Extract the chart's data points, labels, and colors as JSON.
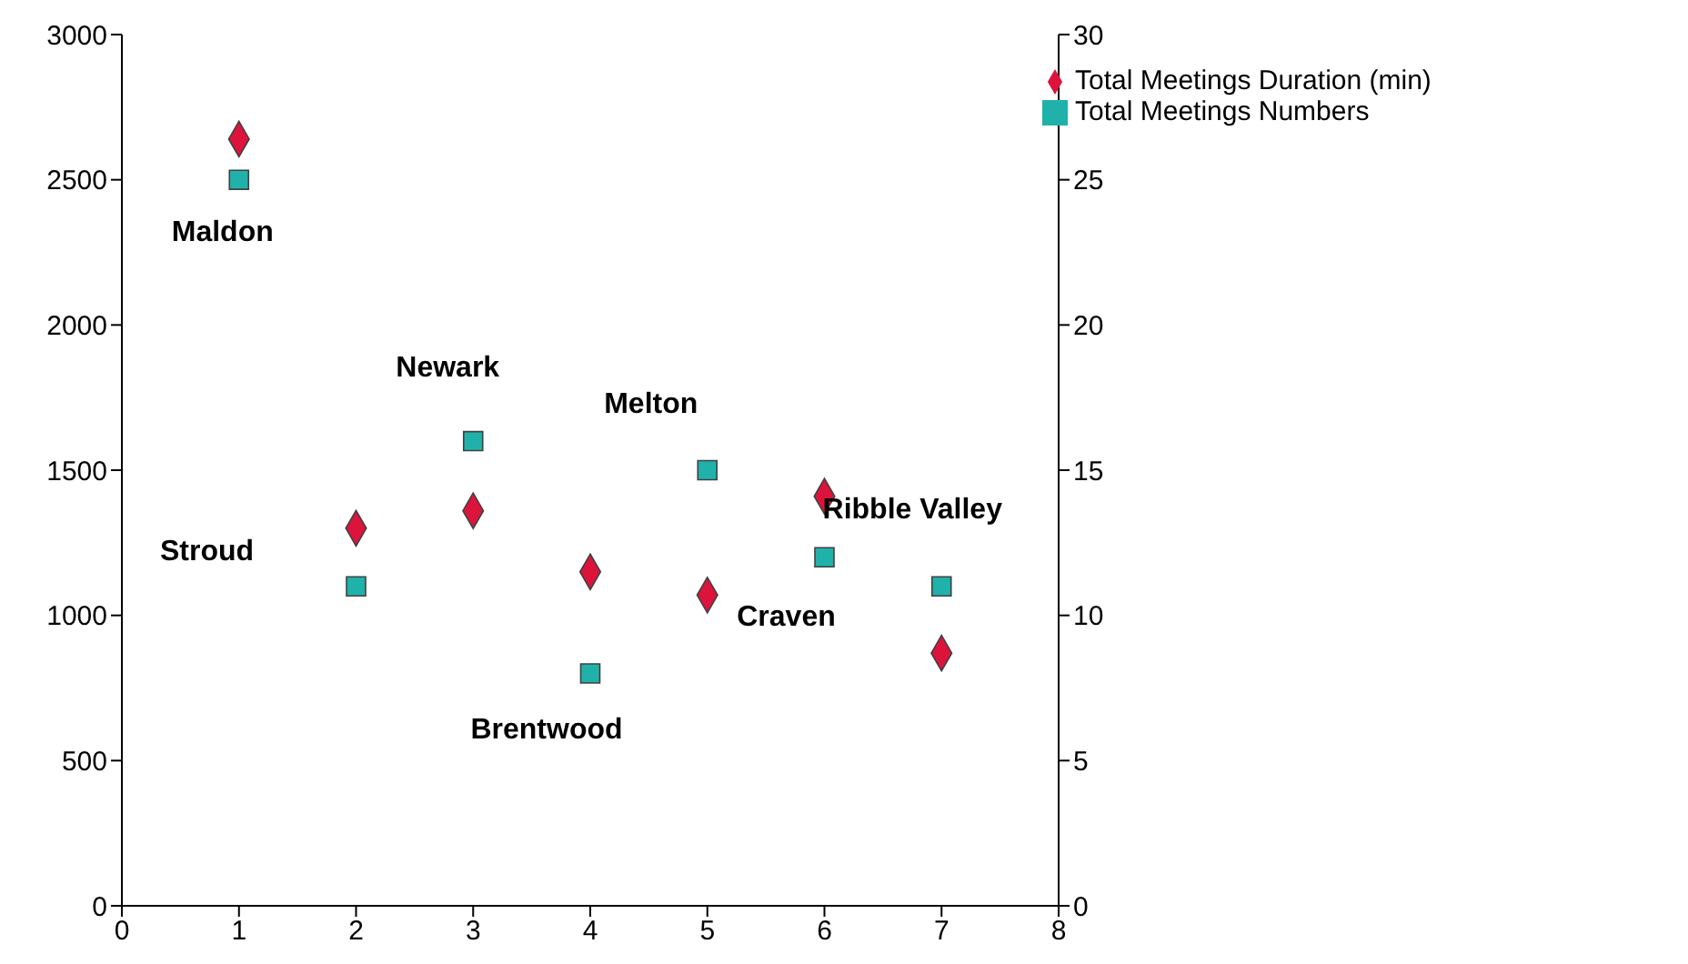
{
  "chart_data": {
    "type": "scatter",
    "x": [
      1,
      2,
      3,
      4,
      5,
      6,
      7
    ],
    "series": [
      {
        "name": "Total Meetings Duration (min)",
        "color": "#dc143c",
        "marker": "diamond",
        "values": [
          2640,
          1300,
          1360,
          1150,
          1070,
          1410,
          870
        ]
      },
      {
        "name": "Total Meetings Numbers",
        "color": "#20b2aa",
        "marker": "square",
        "axis": "y2",
        "values": [
          25,
          11,
          16,
          8,
          15,
          12,
          11
        ]
      }
    ],
    "xlim": [
      0,
      8
    ],
    "xticks": [
      0,
      1,
      2,
      3,
      4,
      5,
      6,
      7,
      8
    ],
    "ylim": [
      0,
      3000
    ],
    "yticks": [
      0,
      500,
      1000,
      1500,
      2000,
      2500,
      3000
    ],
    "y2lim": [
      0,
      30
    ],
    "y2ticks": [
      0,
      5,
      10,
      15,
      20,
      25,
      30
    ],
    "grid": false,
    "legend": "top right",
    "annotations": [
      "Maldon",
      "Stroud",
      "Newark",
      "Brentwood",
      "Melton",
      "Craven",
      "Ribble Valley"
    ]
  }
}
